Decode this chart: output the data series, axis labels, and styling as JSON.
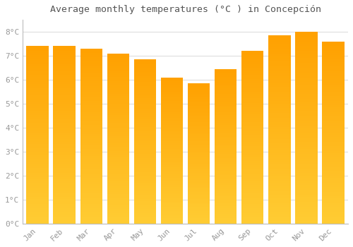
{
  "months": [
    "Jan",
    "Feb",
    "Mar",
    "Apr",
    "May",
    "Jun",
    "Jul",
    "Aug",
    "Sep",
    "Oct",
    "Nov",
    "Dec"
  ],
  "values": [
    7.4,
    7.4,
    7.3,
    7.1,
    6.85,
    6.1,
    5.85,
    6.45,
    7.2,
    7.85,
    8.0,
    7.6
  ],
  "title": "Average monthly temperatures (°C ) in Concepción",
  "ylim": [
    0,
    8.5
  ],
  "yticks": [
    0,
    1,
    2,
    3,
    4,
    5,
    6,
    7,
    8
  ],
  "bar_color_top": "#FFA500",
  "bar_color_bottom": "#FFD060",
  "background_color": "#FFFFFF",
  "plot_bg_color": "#FFFFFF",
  "grid_color": "#DDDDDD",
  "tick_color": "#999999",
  "title_color": "#555555",
  "bar_edge_color": "#FFFFFF",
  "bar_width": 0.82,
  "title_fontsize": 9.5
}
